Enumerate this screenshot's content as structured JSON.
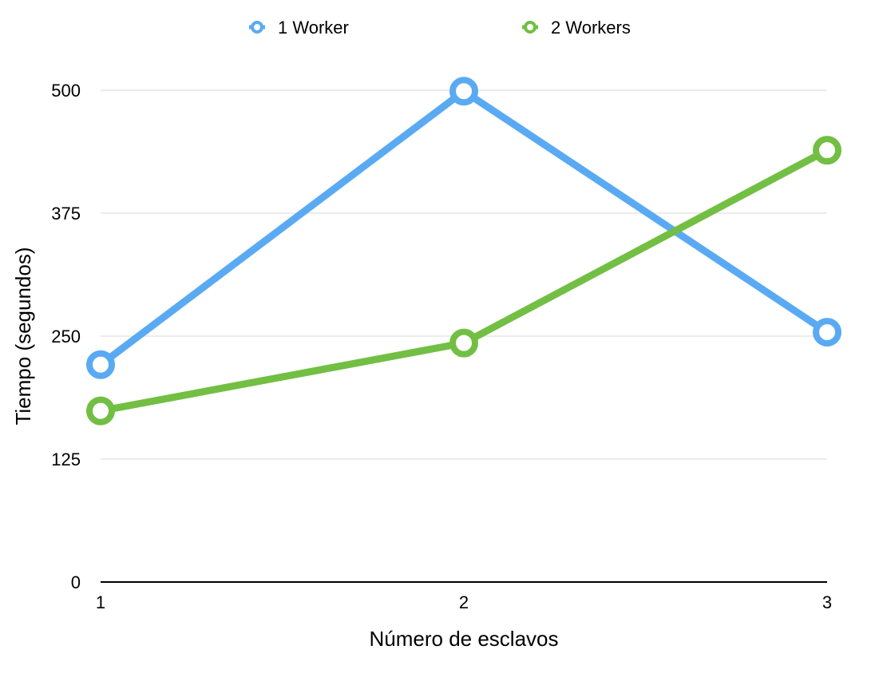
{
  "chart_data": {
    "type": "line",
    "x": [
      1,
      2,
      3
    ],
    "xlabel": "Número de esclavos",
    "ylabel": "Tiempo (segundos)",
    "ylim": [
      0,
      500
    ],
    "yticks": [
      "0",
      "125",
      "250",
      "375",
      "500"
    ],
    "xticks": [
      "1",
      "2",
      "3"
    ],
    "grid": true,
    "legend_position": "top",
    "series": [
      {
        "name": "1 Worker",
        "color": "#5aaaf3",
        "values": [
          221,
          499,
          254
        ]
      },
      {
        "name": "2 Workers",
        "color": "#72bf44",
        "values": [
          174,
          243,
          439
        ]
      }
    ]
  }
}
